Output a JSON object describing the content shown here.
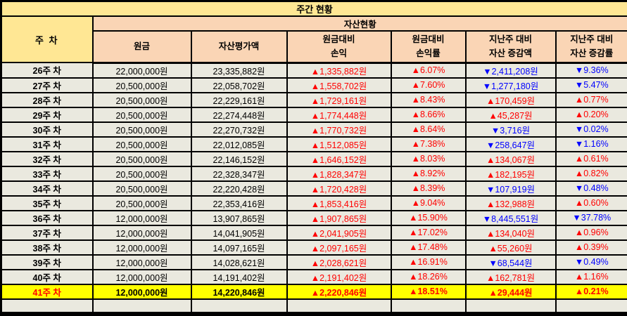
{
  "title": "주간 현황",
  "colors": {
    "title_bg": "#FFE794",
    "header_bg": "#FAD5B5",
    "cell_bg": "#EAE9DF",
    "highlight_bg": "#FFFF00",
    "up_red": "#FF0000",
    "down_blue": "#0000FF",
    "border": "#000000"
  },
  "header": {
    "week_label": "주 차",
    "group_label": "자산현황",
    "columns": [
      "원금",
      "자산평가액",
      "원금대비\n손익",
      "원금대비\n손익률",
      "지난주 대비\n자산 증감액",
      "지난주 대비\n자산 증감률"
    ]
  },
  "rows": [
    {
      "week": "26주 차",
      "highlight": false,
      "cells": [
        {
          "t": "22,000,000원",
          "c": "k"
        },
        {
          "t": "23,335,882원",
          "c": "k"
        },
        {
          "t": "▲1,335,882원",
          "c": "r"
        },
        {
          "t": "▲6.07%",
          "c": "r"
        },
        {
          "t": "▼2,411,208원",
          "c": "b"
        },
        {
          "t": "▼9.36%",
          "c": "b"
        }
      ]
    },
    {
      "week": "27주 차",
      "highlight": false,
      "cells": [
        {
          "t": "20,500,000원",
          "c": "k"
        },
        {
          "t": "22,058,702원",
          "c": "k"
        },
        {
          "t": "▲1,558,702원",
          "c": "r"
        },
        {
          "t": "▲7.60%",
          "c": "r"
        },
        {
          "t": "▼1,277,180원",
          "c": "b"
        },
        {
          "t": "▼5.47%",
          "c": "b"
        }
      ]
    },
    {
      "week": "28주 차",
      "highlight": false,
      "cells": [
        {
          "t": "20,500,000원",
          "c": "k"
        },
        {
          "t": "22,229,161원",
          "c": "k"
        },
        {
          "t": "▲1,729,161원",
          "c": "r"
        },
        {
          "t": "▲8.43%",
          "c": "r"
        },
        {
          "t": "▲170,459원",
          "c": "r"
        },
        {
          "t": "▲0.77%",
          "c": "r"
        }
      ]
    },
    {
      "week": "29주 차",
      "highlight": false,
      "cells": [
        {
          "t": "20,500,000원",
          "c": "k"
        },
        {
          "t": "22,274,448원",
          "c": "k"
        },
        {
          "t": "▲1,774,448원",
          "c": "r"
        },
        {
          "t": "▲8.66%",
          "c": "r"
        },
        {
          "t": "▲45,287원",
          "c": "r"
        },
        {
          "t": "▲0.20%",
          "c": "r"
        }
      ]
    },
    {
      "week": "30주 차",
      "highlight": false,
      "cells": [
        {
          "t": "20,500,000원",
          "c": "k"
        },
        {
          "t": "22,270,732원",
          "c": "k"
        },
        {
          "t": "▲1,770,732원",
          "c": "r"
        },
        {
          "t": "▲8.64%",
          "c": "r"
        },
        {
          "t": "▼3,716원",
          "c": "b"
        },
        {
          "t": "▼0.02%",
          "c": "b"
        }
      ]
    },
    {
      "week": "31주 차",
      "highlight": false,
      "cells": [
        {
          "t": "20,500,000원",
          "c": "k"
        },
        {
          "t": "22,012,085원",
          "c": "k"
        },
        {
          "t": "▲1,512,085원",
          "c": "r"
        },
        {
          "t": "▲7.38%",
          "c": "r"
        },
        {
          "t": "▼258,647원",
          "c": "b"
        },
        {
          "t": "▼1.16%",
          "c": "b"
        }
      ]
    },
    {
      "week": "32주 차",
      "highlight": false,
      "cells": [
        {
          "t": "20,500,000원",
          "c": "k"
        },
        {
          "t": "22,146,152원",
          "c": "k"
        },
        {
          "t": "▲1,646,152원",
          "c": "r"
        },
        {
          "t": "▲8.03%",
          "c": "r"
        },
        {
          "t": "▲134,067원",
          "c": "r"
        },
        {
          "t": "▲0.61%",
          "c": "r"
        }
      ]
    },
    {
      "week": "33주 차",
      "highlight": false,
      "cells": [
        {
          "t": "20,500,000원",
          "c": "k"
        },
        {
          "t": "22,328,347원",
          "c": "k"
        },
        {
          "t": "▲1,828,347원",
          "c": "r"
        },
        {
          "t": "▲8.92%",
          "c": "r"
        },
        {
          "t": "▲182,195원",
          "c": "r"
        },
        {
          "t": "▲0.82%",
          "c": "r"
        }
      ]
    },
    {
      "week": "34주 차",
      "highlight": false,
      "cells": [
        {
          "t": "20,500,000원",
          "c": "k"
        },
        {
          "t": "22,220,428원",
          "c": "k"
        },
        {
          "t": "▲1,720,428원",
          "c": "r"
        },
        {
          "t": "▲8.39%",
          "c": "r"
        },
        {
          "t": "▼107,919원",
          "c": "b"
        },
        {
          "t": "▼0.48%",
          "c": "b"
        }
      ]
    },
    {
      "week": "35주 차",
      "highlight": false,
      "cells": [
        {
          "t": "20,500,000원",
          "c": "k"
        },
        {
          "t": "22,353,416원",
          "c": "k"
        },
        {
          "t": "▲1,853,416원",
          "c": "r"
        },
        {
          "t": "▲9.04%",
          "c": "r"
        },
        {
          "t": "▲132,988원",
          "c": "r"
        },
        {
          "t": "▲0.60%",
          "c": "r"
        }
      ]
    },
    {
      "week": "36주 차",
      "highlight": false,
      "cells": [
        {
          "t": "12,000,000원",
          "c": "k"
        },
        {
          "t": "13,907,865원",
          "c": "k"
        },
        {
          "t": "▲1,907,865원",
          "c": "r"
        },
        {
          "t": "▲15.90%",
          "c": "r"
        },
        {
          "t": "▼8,445,551원",
          "c": "b"
        },
        {
          "t": "▼37.78%",
          "c": "b"
        }
      ]
    },
    {
      "week": "37주 차",
      "highlight": false,
      "cells": [
        {
          "t": "12,000,000원",
          "c": "k"
        },
        {
          "t": "14,041,905원",
          "c": "k"
        },
        {
          "t": "▲2,041,905원",
          "c": "r"
        },
        {
          "t": "▲17.02%",
          "c": "r"
        },
        {
          "t": "▲134,040원",
          "c": "r"
        },
        {
          "t": "▲0.96%",
          "c": "r"
        }
      ]
    },
    {
      "week": "38주 차",
      "highlight": false,
      "cells": [
        {
          "t": "12,000,000원",
          "c": "k"
        },
        {
          "t": "14,097,165원",
          "c": "k"
        },
        {
          "t": "▲2,097,165원",
          "c": "r"
        },
        {
          "t": "▲17.48%",
          "c": "r"
        },
        {
          "t": "▲55,260원",
          "c": "r"
        },
        {
          "t": "▲0.39%",
          "c": "r"
        }
      ]
    },
    {
      "week": "39주 차",
      "highlight": false,
      "cells": [
        {
          "t": "12,000,000원",
          "c": "k"
        },
        {
          "t": "14,028,621원",
          "c": "k"
        },
        {
          "t": "▲2,028,621원",
          "c": "r"
        },
        {
          "t": "▲16.91%",
          "c": "r"
        },
        {
          "t": "▼68,544원",
          "c": "b"
        },
        {
          "t": "▼0.49%",
          "c": "b"
        }
      ]
    },
    {
      "week": "40주 차",
      "highlight": false,
      "cells": [
        {
          "t": "12,000,000원",
          "c": "k"
        },
        {
          "t": "14,191,402원",
          "c": "k"
        },
        {
          "t": "▲2,191,402원",
          "c": "r"
        },
        {
          "t": "▲18.26%",
          "c": "r"
        },
        {
          "t": "▲162,781원",
          "c": "r"
        },
        {
          "t": "▲1.16%",
          "c": "r"
        }
      ]
    },
    {
      "week": "41주 차",
      "highlight": true,
      "cells": [
        {
          "t": "12,000,000원",
          "c": "k"
        },
        {
          "t": "14,220,846원",
          "c": "k"
        },
        {
          "t": "▲2,220,846원",
          "c": "r"
        },
        {
          "t": "▲18.51%",
          "c": "r"
        },
        {
          "t": "▲29,444원",
          "c": "r"
        },
        {
          "t": "▲0.21%",
          "c": "r"
        }
      ]
    }
  ]
}
